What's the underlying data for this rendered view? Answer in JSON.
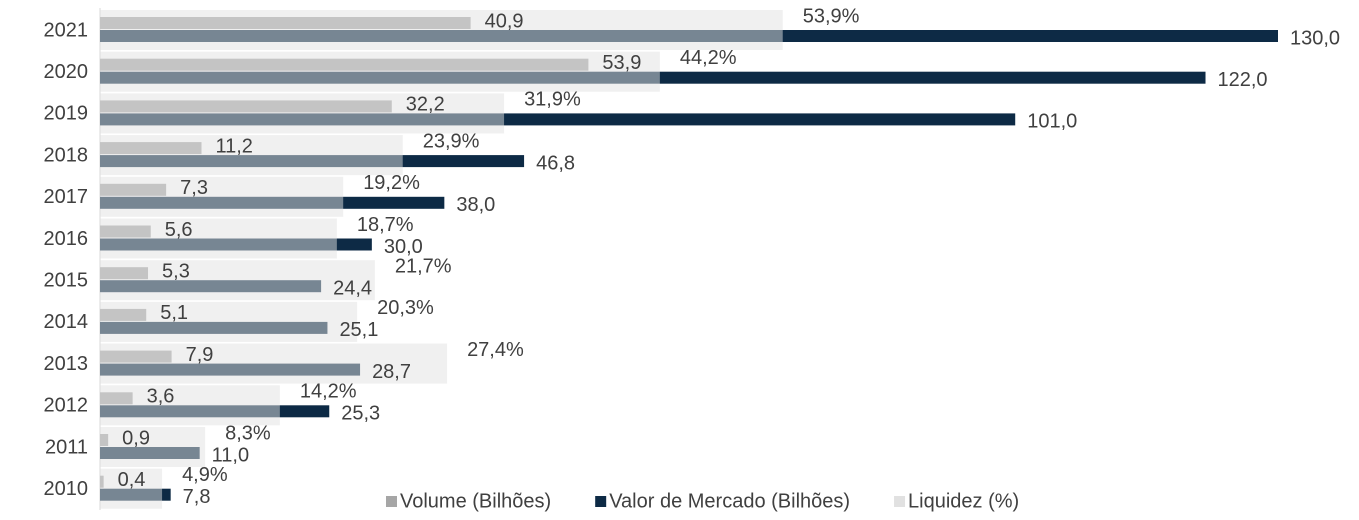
{
  "chart_data": {
    "type": "bar",
    "categories": [
      "2021",
      "2020",
      "2019",
      "2018",
      "2017",
      "2016",
      "2015",
      "2014",
      "2013",
      "2012",
      "2011",
      "2010"
    ],
    "series": [
      {
        "name": "Volume (Bilhões)",
        "color": "#a6a6a6",
        "values": [
          40.9,
          53.9,
          32.2,
          11.2,
          7.3,
          5.6,
          5.3,
          5.1,
          7.9,
          3.6,
          0.9,
          0.4
        ],
        "value_labels": [
          "40,9",
          "53,9",
          "32,2",
          "11,2",
          "7,3",
          "5,6",
          "5,3",
          "5,1",
          "7,9",
          "3,6",
          "0,9",
          "0,4"
        ]
      },
      {
        "name": "Valor de Mercado (Bilhões)",
        "color": "#0d2a45",
        "values": [
          130.0,
          122.0,
          101.0,
          46.8,
          38.0,
          30.0,
          24.4,
          25.1,
          28.7,
          25.3,
          11.0,
          7.8
        ],
        "value_labels": [
          "130,0",
          "122,0",
          "101,0",
          "46,8",
          "38,0",
          "30,0",
          "24,4",
          "25,1",
          "28,7",
          "25,3",
          "11,0",
          "7,8"
        ]
      },
      {
        "name": "Liquidez (%)",
        "color": "#e1e1e1",
        "axis": "x2",
        "values": [
          53.9,
          44.2,
          31.9,
          23.9,
          19.2,
          18.7,
          21.7,
          20.3,
          27.4,
          14.2,
          8.3,
          4.9
        ],
        "value_labels": [
          "53,9%",
          "44,2%",
          "31,9%",
          "23,9%",
          "19,2%",
          "18,7%",
          "21,7%",
          "20,3%",
          "27,4%",
          "14,2%",
          "8,3%",
          "4,9%"
        ]
      }
    ],
    "xlim": [
      0,
      130
    ],
    "x2lim": [
      0,
      93
    ],
    "legend": "bottom"
  }
}
